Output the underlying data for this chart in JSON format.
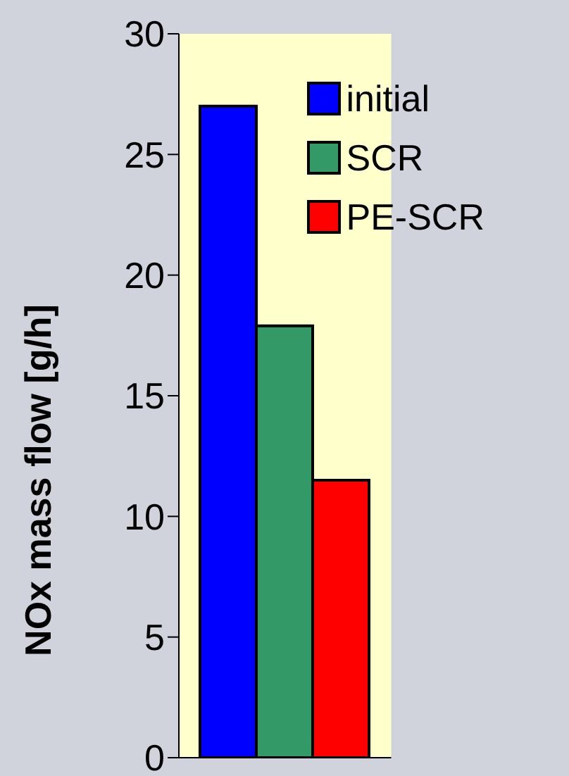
{
  "chart_data": {
    "type": "bar",
    "ylabel": "NOx mass flow [g/h]",
    "categories": [
      null
    ],
    "series": [
      {
        "name": "initial",
        "color": "#0000ff",
        "values": [
          27.0
        ]
      },
      {
        "name": "SCR",
        "color": "#339966",
        "values": [
          17.9
        ]
      },
      {
        "name": "PE-SCR",
        "color": "#ff0000",
        "values": [
          11.5
        ]
      }
    ],
    "ylim": [
      0,
      30
    ],
    "yticks": [
      0,
      5,
      10,
      15,
      20,
      25,
      30
    ],
    "legend": "top right"
  }
}
